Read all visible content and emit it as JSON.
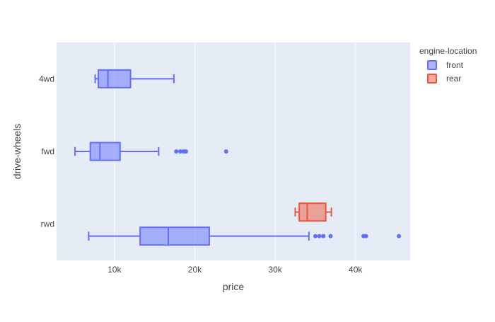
{
  "chart_data": {
    "type": "box",
    "orientation": "horizontal",
    "title": "",
    "xlabel": "price",
    "ylabel": "drive-wheels",
    "xlim": [
      2800,
      46800
    ],
    "x_ticks": [
      {
        "value": 10000,
        "label": "10k"
      },
      {
        "value": 20000,
        "label": "20k"
      },
      {
        "value": 30000,
        "label": "30k"
      },
      {
        "value": 40000,
        "label": "40k"
      }
    ],
    "categories": [
      "4wd",
      "fwd",
      "rwd"
    ],
    "legend": {
      "title": "engine-location",
      "position": "top-right"
    },
    "grid": true,
    "series": [
      {
        "name": "front",
        "color": "#636efa",
        "boxes": [
          {
            "category": "4wd",
            "lower_whisker": 7600,
            "q1": 8000,
            "median": 9200,
            "q3": 12000,
            "upper_whisker": 17400,
            "outliers": []
          },
          {
            "category": "fwd",
            "lower_whisker": 5100,
            "q1": 7000,
            "median": 8200,
            "q3": 10700,
            "upper_whisker": 15500,
            "outliers": [
              17700,
              18200,
              18600,
              18900,
              23900
            ]
          },
          {
            "category": "rwd",
            "lower_whisker": 6800,
            "q1": 13200,
            "median": 16700,
            "q3": 21800,
            "upper_whisker": 34200,
            "outliers": [
              35000,
              35500,
              36000,
              36900,
              41000,
              41300,
              45400
            ]
          }
        ]
      },
      {
        "name": "rear",
        "color": "#ef553b",
        "boxes": [
          {
            "category": "rwd",
            "lower_whisker": 32500,
            "q1": 33000,
            "median": 34000,
            "q3": 36300,
            "upper_whisker": 37000,
            "outliers": []
          }
        ]
      }
    ]
  }
}
